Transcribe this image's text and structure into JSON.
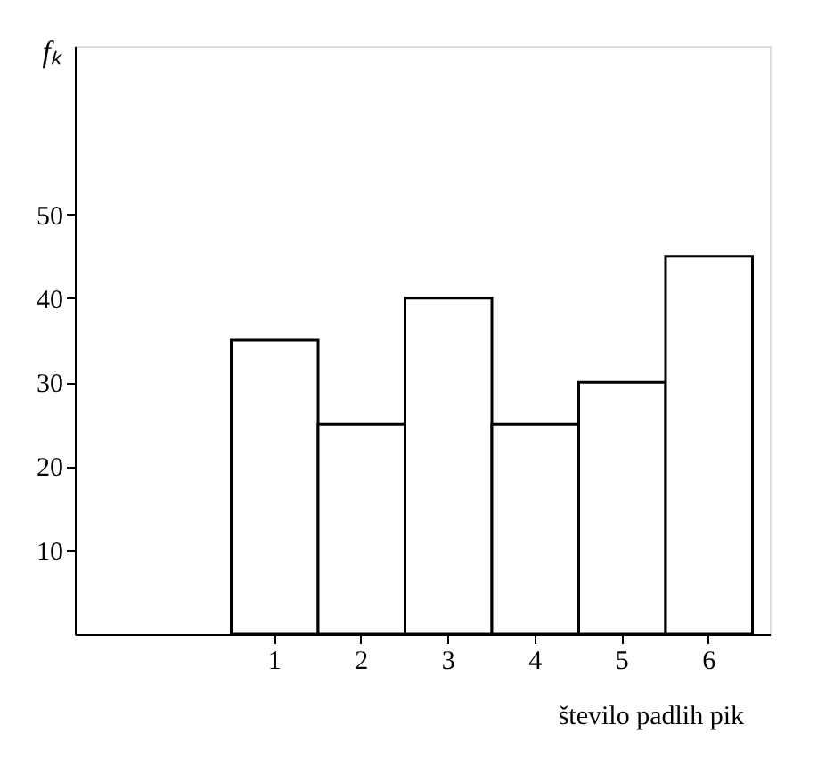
{
  "chart_data": {
    "type": "bar",
    "categories": [
      "1",
      "2",
      "3",
      "4",
      "5",
      "6"
    ],
    "values": [
      35,
      25,
      40,
      25,
      30,
      45
    ],
    "color": "#ffffff",
    "ylim": [
      0,
      70
    ],
    "yticks": [
      10,
      20,
      30,
      40,
      50
    ],
    "xlabel": "število padlih pik",
    "ylabel": "fₖ",
    "grid": false
  }
}
